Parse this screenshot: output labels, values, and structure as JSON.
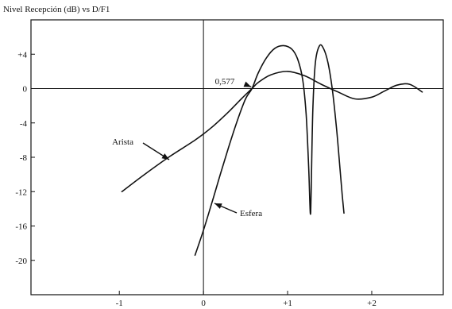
{
  "chart_data": {
    "type": "line",
    "title": "Nivel Recepción (dB) vs D/F1",
    "xlabel": "",
    "ylabel": "",
    "xlim": [
      -2.05,
      2.85
    ],
    "ylim": [
      -24,
      8
    ],
    "x_ticks": [
      {
        "value": -1,
        "label": "-1"
      },
      {
        "value": 0,
        "label": "0"
      },
      {
        "value": 1,
        "label": "+1"
      },
      {
        "value": 2,
        "label": "+2"
      }
    ],
    "y_ticks": [
      {
        "value": 4,
        "label": "+4"
      },
      {
        "value": 0,
        "label": "0"
      },
      {
        "value": -4,
        "label": "-4"
      },
      {
        "value": -8,
        "label": "-8"
      },
      {
        "value": -12,
        "label": "-12"
      },
      {
        "value": -16,
        "label": "-16"
      },
      {
        "value": -20,
        "label": "-20"
      }
    ],
    "grid": false,
    "reference_lines": {
      "x": 0,
      "y": 0
    },
    "series": [
      {
        "name": "Arista",
        "x": [
          -0.97,
          -0.7,
          -0.4,
          -0.1,
          0.1,
          0.3,
          0.45,
          0.577,
          0.65,
          0.8,
          1.0,
          1.2,
          1.4,
          1.6,
          1.8,
          2.0,
          2.15,
          2.3,
          2.45,
          2.6
        ],
        "y": [
          -12.0,
          -10.0,
          -7.9,
          -6.0,
          -4.5,
          -2.7,
          -1.2,
          0.0,
          0.7,
          1.6,
          2.0,
          1.5,
          0.5,
          -0.4,
          -1.2,
          -1.0,
          -0.3,
          0.4,
          0.5,
          -0.4
        ]
      },
      {
        "name": "Esfera",
        "x": [
          -0.1,
          0.0,
          0.1,
          0.2,
          0.3,
          0.4,
          0.5,
          0.577,
          0.65,
          0.75,
          0.85,
          0.95,
          1.05,
          1.12,
          1.18,
          1.22,
          1.25,
          1.27,
          1.28,
          1.3,
          1.33,
          1.38,
          1.43,
          1.48,
          1.53,
          1.58,
          1.62,
          1.65,
          1.67
        ],
        "y": [
          -19.4,
          -16.5,
          -13.3,
          -10.0,
          -6.8,
          -3.8,
          -1.2,
          0.0,
          1.8,
          3.6,
          4.7,
          5.0,
          4.6,
          3.4,
          1.0,
          -3.0,
          -9.0,
          -14.5,
          -12.0,
          -2.5,
          3.0,
          5.0,
          4.6,
          3.0,
          0.0,
          -4.5,
          -9.0,
          -12.5,
          -14.5
        ]
      }
    ],
    "annotations": [
      {
        "text": "0,577",
        "x": 0.577,
        "y": 0.0
      },
      {
        "text": "Arista",
        "series": "Arista"
      },
      {
        "text": "Esfera",
        "series": "Esfera"
      }
    ]
  }
}
